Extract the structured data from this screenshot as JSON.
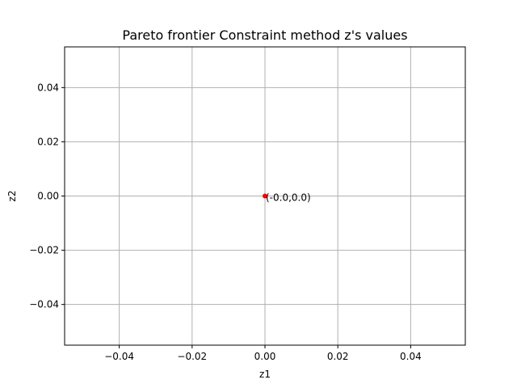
{
  "chart_data": {
    "type": "scatter",
    "title": "Pareto frontier Constraint method z's values",
    "xlabel": "z1",
    "ylabel": "z2",
    "xlim": [
      -0.055,
      0.055
    ],
    "ylim": [
      -0.055,
      0.055
    ],
    "xticks": [
      -0.04,
      -0.02,
      0.0,
      0.02,
      0.04
    ],
    "yticks": [
      -0.04,
      -0.02,
      0.0,
      0.02,
      0.04
    ],
    "xtick_labels": [
      "−0.04",
      "−0.02",
      "0.00",
      "0.02",
      "0.04"
    ],
    "ytick_labels": [
      "−0.04",
      "−0.02",
      "0.00",
      "0.02",
      "0.04"
    ],
    "grid": true,
    "points": [
      {
        "x": 0.0,
        "y": 0.0,
        "label": "(-0.0,0.0)"
      }
    ],
    "marker_color": "#ff0000",
    "grid_color": "#b0b0b0"
  }
}
